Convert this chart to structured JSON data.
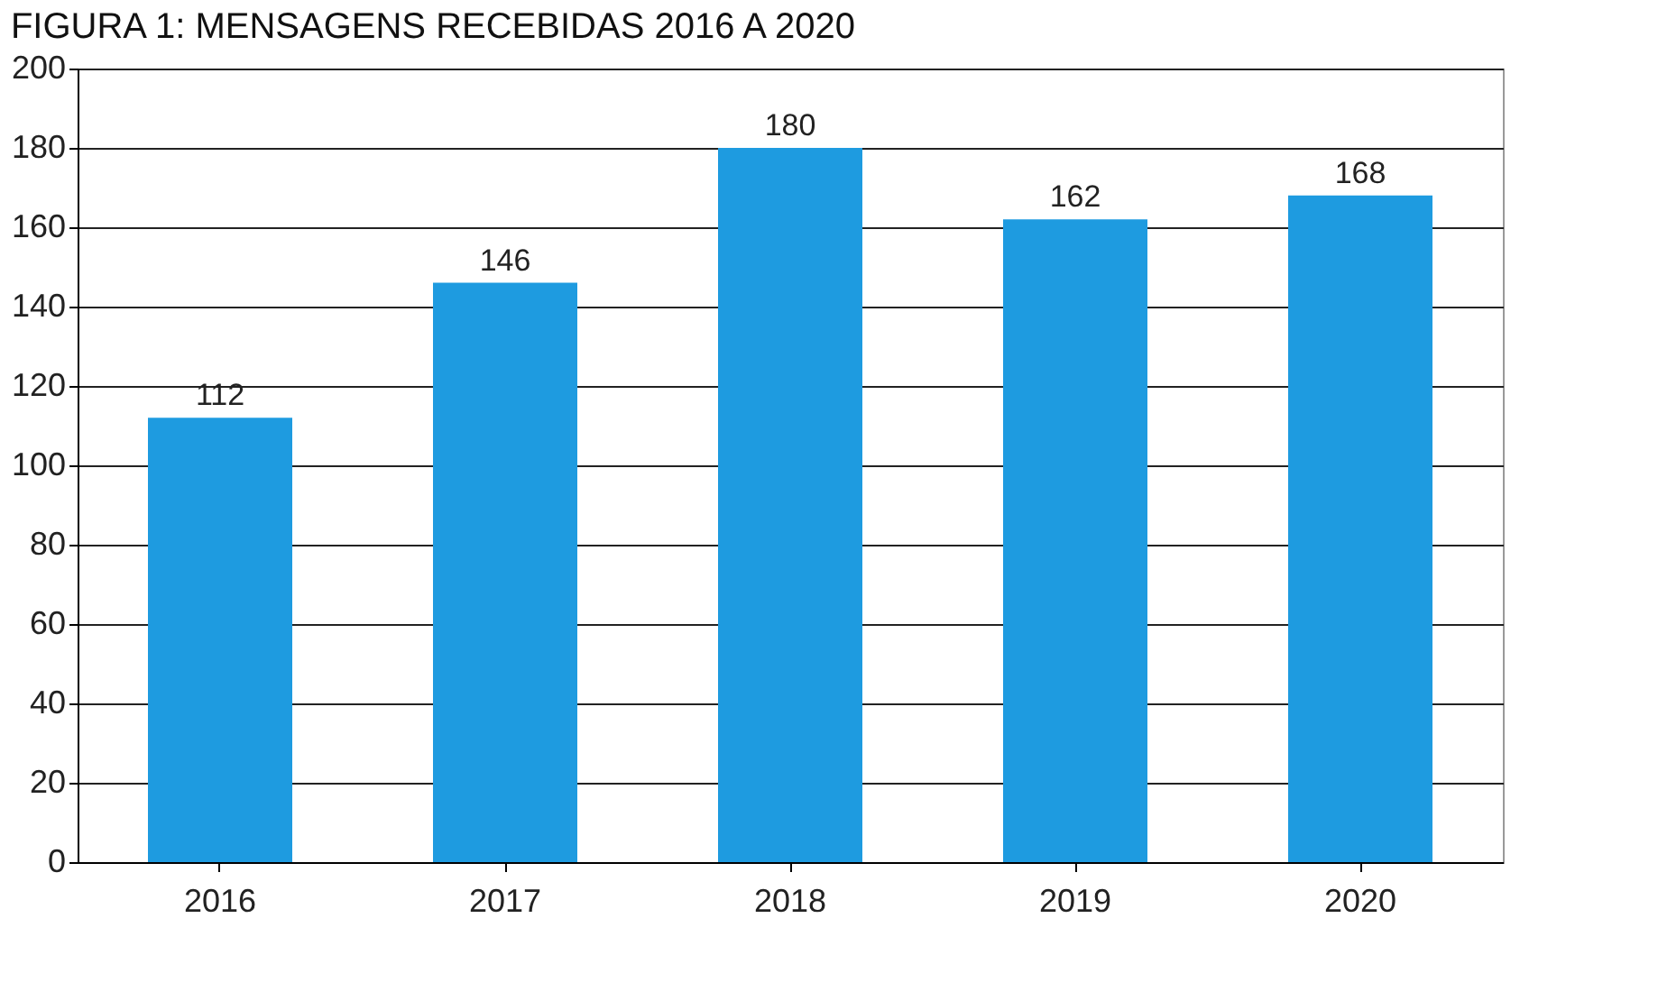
{
  "chart_data": {
    "type": "bar",
    "title": "FIGURA 1: MENSAGENS RECEBIDAS 2016 A 2020",
    "categories": [
      "2016",
      "2017",
      "2018",
      "2019",
      "2020"
    ],
    "values": [
      112,
      146,
      180,
      162,
      168
    ],
    "color": "#1e9be0",
    "ylim": [
      0,
      200
    ],
    "yticks": [
      0,
      20,
      40,
      60,
      80,
      100,
      120,
      140,
      160,
      180,
      200
    ],
    "grid": "y",
    "data_labels": true
  }
}
